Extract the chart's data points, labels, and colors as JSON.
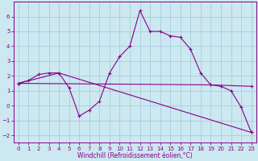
{
  "xlabel": "Windchill (Refroidissement éolien,°C)",
  "bg_color": "#cce8f0",
  "line_color": "#880088",
  "grid_color": "#aaccdd",
  "line1_x": [
    0,
    1,
    2,
    3,
    4,
    5,
    6,
    7,
    8,
    9,
    10,
    11,
    12,
    13,
    14,
    15,
    16,
    17,
    18,
    19,
    20,
    21,
    22,
    23
  ],
  "line1_y": [
    1.5,
    1.7,
    2.1,
    2.2,
    2.2,
    1.2,
    -0.7,
    -0.3,
    0.3,
    2.2,
    3.3,
    4.0,
    6.4,
    5.0,
    5.0,
    4.7,
    4.6,
    3.8,
    2.2,
    1.4,
    1.3,
    1.0,
    -0.1,
    -1.8
  ],
  "line2_x": [
    0,
    4,
    23
  ],
  "line2_y": [
    1.5,
    2.2,
    -1.8
  ],
  "line3_x": [
    0,
    19,
    23
  ],
  "line3_y": [
    1.5,
    1.4,
    1.3
  ],
  "xlim": [
    -0.5,
    23.5
  ],
  "ylim": [
    -2.5,
    7.0
  ],
  "yticks": [
    -2,
    -1,
    0,
    1,
    2,
    3,
    4,
    5,
    6
  ],
  "xticks": [
    0,
    1,
    2,
    3,
    4,
    5,
    6,
    7,
    8,
    9,
    10,
    11,
    12,
    13,
    14,
    15,
    16,
    17,
    18,
    19,
    20,
    21,
    22,
    23
  ],
  "tick_fontsize": 5.0,
  "xlabel_fontsize": 5.5
}
